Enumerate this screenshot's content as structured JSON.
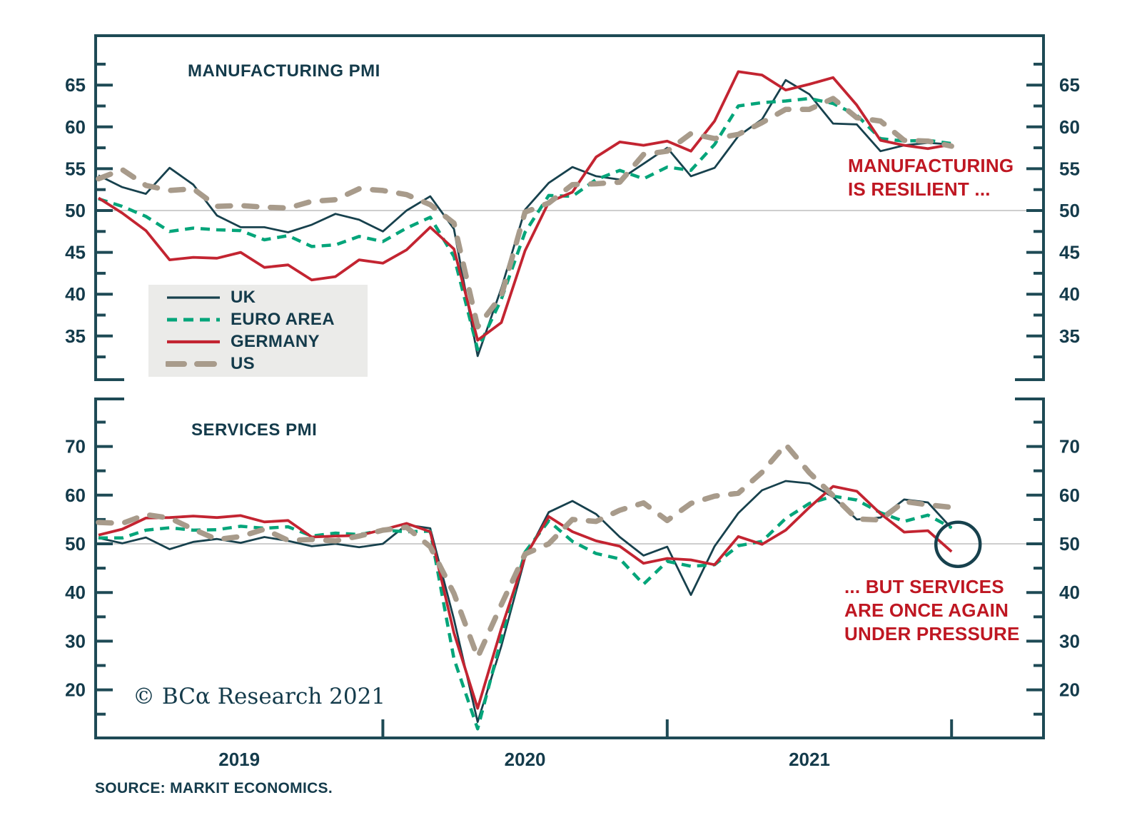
{
  "page": {
    "copyright": "© BCα Research 2021",
    "source": "SOURCE: MARKIT ECONOMICS."
  },
  "colors": {
    "axis": "#1e4a55",
    "text_dark": "#143b4b",
    "annotation_red": "#bf1722",
    "gridline": "#bdbdbd",
    "legend_bg": "#ebebe9",
    "uk": "#17414d",
    "euro_area": "#04a57a",
    "germany": "#c32431",
    "us": "#a89b8b"
  },
  "legend": {
    "items": [
      {
        "label": "UK",
        "series": "uk"
      },
      {
        "label": "EURO AREA",
        "series": "euro_area"
      },
      {
        "label": "GERMANY",
        "series": "germany"
      },
      {
        "label": "US",
        "series": "us"
      }
    ]
  },
  "annotations": {
    "manufacturing_note": {
      "lines": [
        "MANUFACTURING",
        "IS RESILIENT ..."
      ]
    },
    "services_note": {
      "lines": [
        "... BUT SERVICES",
        "ARE ONCE AGAIN",
        "UNDER PRESSURE"
      ]
    },
    "highlight_circle": {
      "panel": "services",
      "month": "2021-12",
      "value": 49.9
    }
  },
  "chart_data": [
    {
      "type": "line",
      "panel": "manufacturing",
      "title": "MANUFACTURING PMI",
      "ylabel": "",
      "ylim": [
        29.6,
        71.1
      ],
      "yticks_major": [
        35,
        40,
        45,
        50,
        55,
        60,
        65
      ],
      "yticks_minor": [
        32.5,
        37.5,
        42.5,
        47.5,
        52.5,
        57.5,
        62.5,
        67.5
      ],
      "reference_line": 50,
      "grid": false,
      "categories": [
        "2018-12",
        "2019-01",
        "2019-02",
        "2019-03",
        "2019-04",
        "2019-05",
        "2019-06",
        "2019-07",
        "2019-08",
        "2019-09",
        "2019-10",
        "2019-11",
        "2019-12",
        "2020-01",
        "2020-02",
        "2020-03",
        "2020-04",
        "2020-05",
        "2020-06",
        "2020-07",
        "2020-08",
        "2020-09",
        "2020-10",
        "2020-11",
        "2020-12",
        "2021-01",
        "2021-02",
        "2021-03",
        "2021-04",
        "2021-05",
        "2021-06",
        "2021-07",
        "2021-08",
        "2021-09",
        "2021-10",
        "2021-11",
        "2021-12"
      ],
      "series": [
        {
          "name": "UK",
          "key": "uk",
          "values": [
            54.2,
            52.8,
            52.0,
            55.1,
            53.1,
            49.4,
            48.0,
            48.0,
            47.4,
            48.3,
            49.6,
            48.9,
            47.5,
            50.0,
            51.7,
            47.8,
            32.6,
            40.7,
            50.1,
            53.3,
            55.2,
            54.1,
            53.7,
            55.6,
            57.5,
            54.1,
            55.1,
            58.9,
            60.9,
            65.6,
            63.9,
            60.4,
            60.3,
            57.1,
            57.8,
            58.1,
            57.9
          ]
        },
        {
          "name": "EURO AREA",
          "key": "euro_area",
          "values": [
            51.4,
            50.5,
            49.3,
            47.5,
            47.9,
            47.7,
            47.6,
            46.5,
            47.0,
            45.7,
            45.9,
            46.9,
            46.3,
            47.9,
            49.2,
            44.5,
            33.4,
            39.4,
            47.4,
            51.8,
            51.7,
            53.7,
            54.8,
            53.8,
            55.2,
            54.8,
            57.9,
            62.5,
            62.9,
            63.1,
            63.4,
            62.8,
            61.4,
            58.6,
            58.3,
            58.4,
            58.0
          ]
        },
        {
          "name": "GERMANY",
          "key": "germany",
          "values": [
            51.5,
            49.7,
            47.6,
            44.1,
            44.4,
            44.3,
            45.0,
            43.2,
            43.5,
            41.7,
            42.1,
            44.1,
            43.7,
            45.3,
            48.0,
            45.4,
            34.5,
            36.6,
            45.2,
            51.0,
            52.2,
            56.4,
            58.2,
            57.8,
            58.3,
            57.1,
            60.7,
            66.6,
            66.2,
            64.4,
            65.1,
            65.9,
            62.6,
            58.4,
            57.8,
            57.4,
            57.9
          ]
        },
        {
          "name": "US",
          "key": "us",
          "values": [
            53.8,
            54.9,
            53.0,
            52.4,
            52.6,
            50.5,
            50.6,
            50.4,
            50.3,
            51.1,
            51.3,
            52.6,
            52.4,
            51.9,
            50.7,
            48.5,
            36.1,
            39.8,
            49.8,
            50.9,
            53.1,
            53.2,
            53.4,
            56.7,
            57.1,
            59.2,
            58.6,
            59.1,
            60.5,
            62.1,
            62.1,
            63.4,
            61.1,
            60.7,
            58.4,
            58.3,
            57.7
          ]
        }
      ]
    },
    {
      "type": "line",
      "panel": "services",
      "title": "SERVICES PMI",
      "ylabel": "",
      "ylim": [
        9.8,
        80.1
      ],
      "yticks_major": [
        20,
        30,
        40,
        50,
        60,
        70
      ],
      "yticks_minor": [
        15,
        25,
        35,
        45,
        55,
        65,
        75
      ],
      "reference_line": 50,
      "grid": false,
      "x_year_labels": [
        "2019",
        "2020",
        "2021"
      ],
      "x_year_tick_months": [
        "2019-12",
        "2020-12",
        "2021-12"
      ],
      "categories": [
        "2018-12",
        "2019-01",
        "2019-02",
        "2019-03",
        "2019-04",
        "2019-05",
        "2019-06",
        "2019-07",
        "2019-08",
        "2019-09",
        "2019-10",
        "2019-11",
        "2019-12",
        "2020-01",
        "2020-02",
        "2020-03",
        "2020-04",
        "2020-05",
        "2020-06",
        "2020-07",
        "2020-08",
        "2020-09",
        "2020-10",
        "2020-11",
        "2020-12",
        "2021-01",
        "2021-02",
        "2021-03",
        "2021-04",
        "2021-05",
        "2021-06",
        "2021-07",
        "2021-08",
        "2021-09",
        "2021-10",
        "2021-11",
        "2021-12"
      ],
      "series": [
        {
          "name": "UK",
          "key": "uk",
          "values": [
            51.2,
            50.1,
            51.3,
            48.9,
            50.4,
            51.0,
            50.2,
            51.4,
            50.6,
            49.5,
            50.0,
            49.3,
            50.0,
            53.9,
            53.2,
            34.5,
            13.4,
            29.0,
            47.1,
            56.5,
            58.8,
            56.1,
            51.4,
            47.6,
            49.4,
            39.5,
            49.5,
            56.3,
            61.0,
            62.9,
            62.4,
            59.6,
            55.0,
            55.4,
            59.1,
            58.5,
            53.2
          ]
        },
        {
          "name": "EURO AREA",
          "key": "euro_area",
          "values": [
            51.2,
            51.2,
            52.8,
            53.3,
            52.8,
            52.9,
            53.6,
            53.2,
            53.5,
            51.6,
            52.2,
            51.9,
            52.8,
            52.5,
            52.6,
            26.4,
            12.0,
            30.5,
            48.3,
            54.7,
            50.5,
            48.0,
            46.9,
            41.7,
            46.4,
            45.4,
            45.7,
            49.6,
            50.5,
            55.2,
            58.3,
            59.8,
            59.0,
            56.4,
            54.6,
            55.9,
            53.3
          ]
        },
        {
          "name": "GERMANY",
          "key": "germany",
          "values": [
            51.8,
            53.0,
            55.3,
            55.4,
            55.7,
            55.4,
            55.8,
            54.5,
            54.8,
            51.4,
            51.6,
            51.7,
            52.9,
            54.2,
            52.5,
            31.7,
            16.2,
            32.6,
            47.3,
            55.6,
            52.5,
            50.6,
            49.5,
            46.0,
            47.0,
            46.7,
            45.7,
            51.5,
            49.9,
            52.8,
            57.5,
            61.8,
            60.8,
            56.2,
            52.4,
            52.7,
            48.4
          ]
        },
        {
          "name": "US",
          "key": "us",
          "values": [
            54.4,
            54.2,
            56.0,
            55.3,
            53.0,
            50.9,
            51.5,
            53.0,
            50.7,
            50.9,
            50.6,
            51.6,
            52.8,
            53.4,
            49.4,
            39.8,
            26.7,
            37.5,
            47.9,
            50.0,
            55.0,
            54.6,
            56.9,
            58.4,
            54.8,
            58.3,
            59.8,
            60.4,
            64.7,
            70.4,
            64.6,
            59.9,
            55.1,
            54.9,
            58.7,
            58.0,
            57.5
          ]
        }
      ]
    }
  ]
}
